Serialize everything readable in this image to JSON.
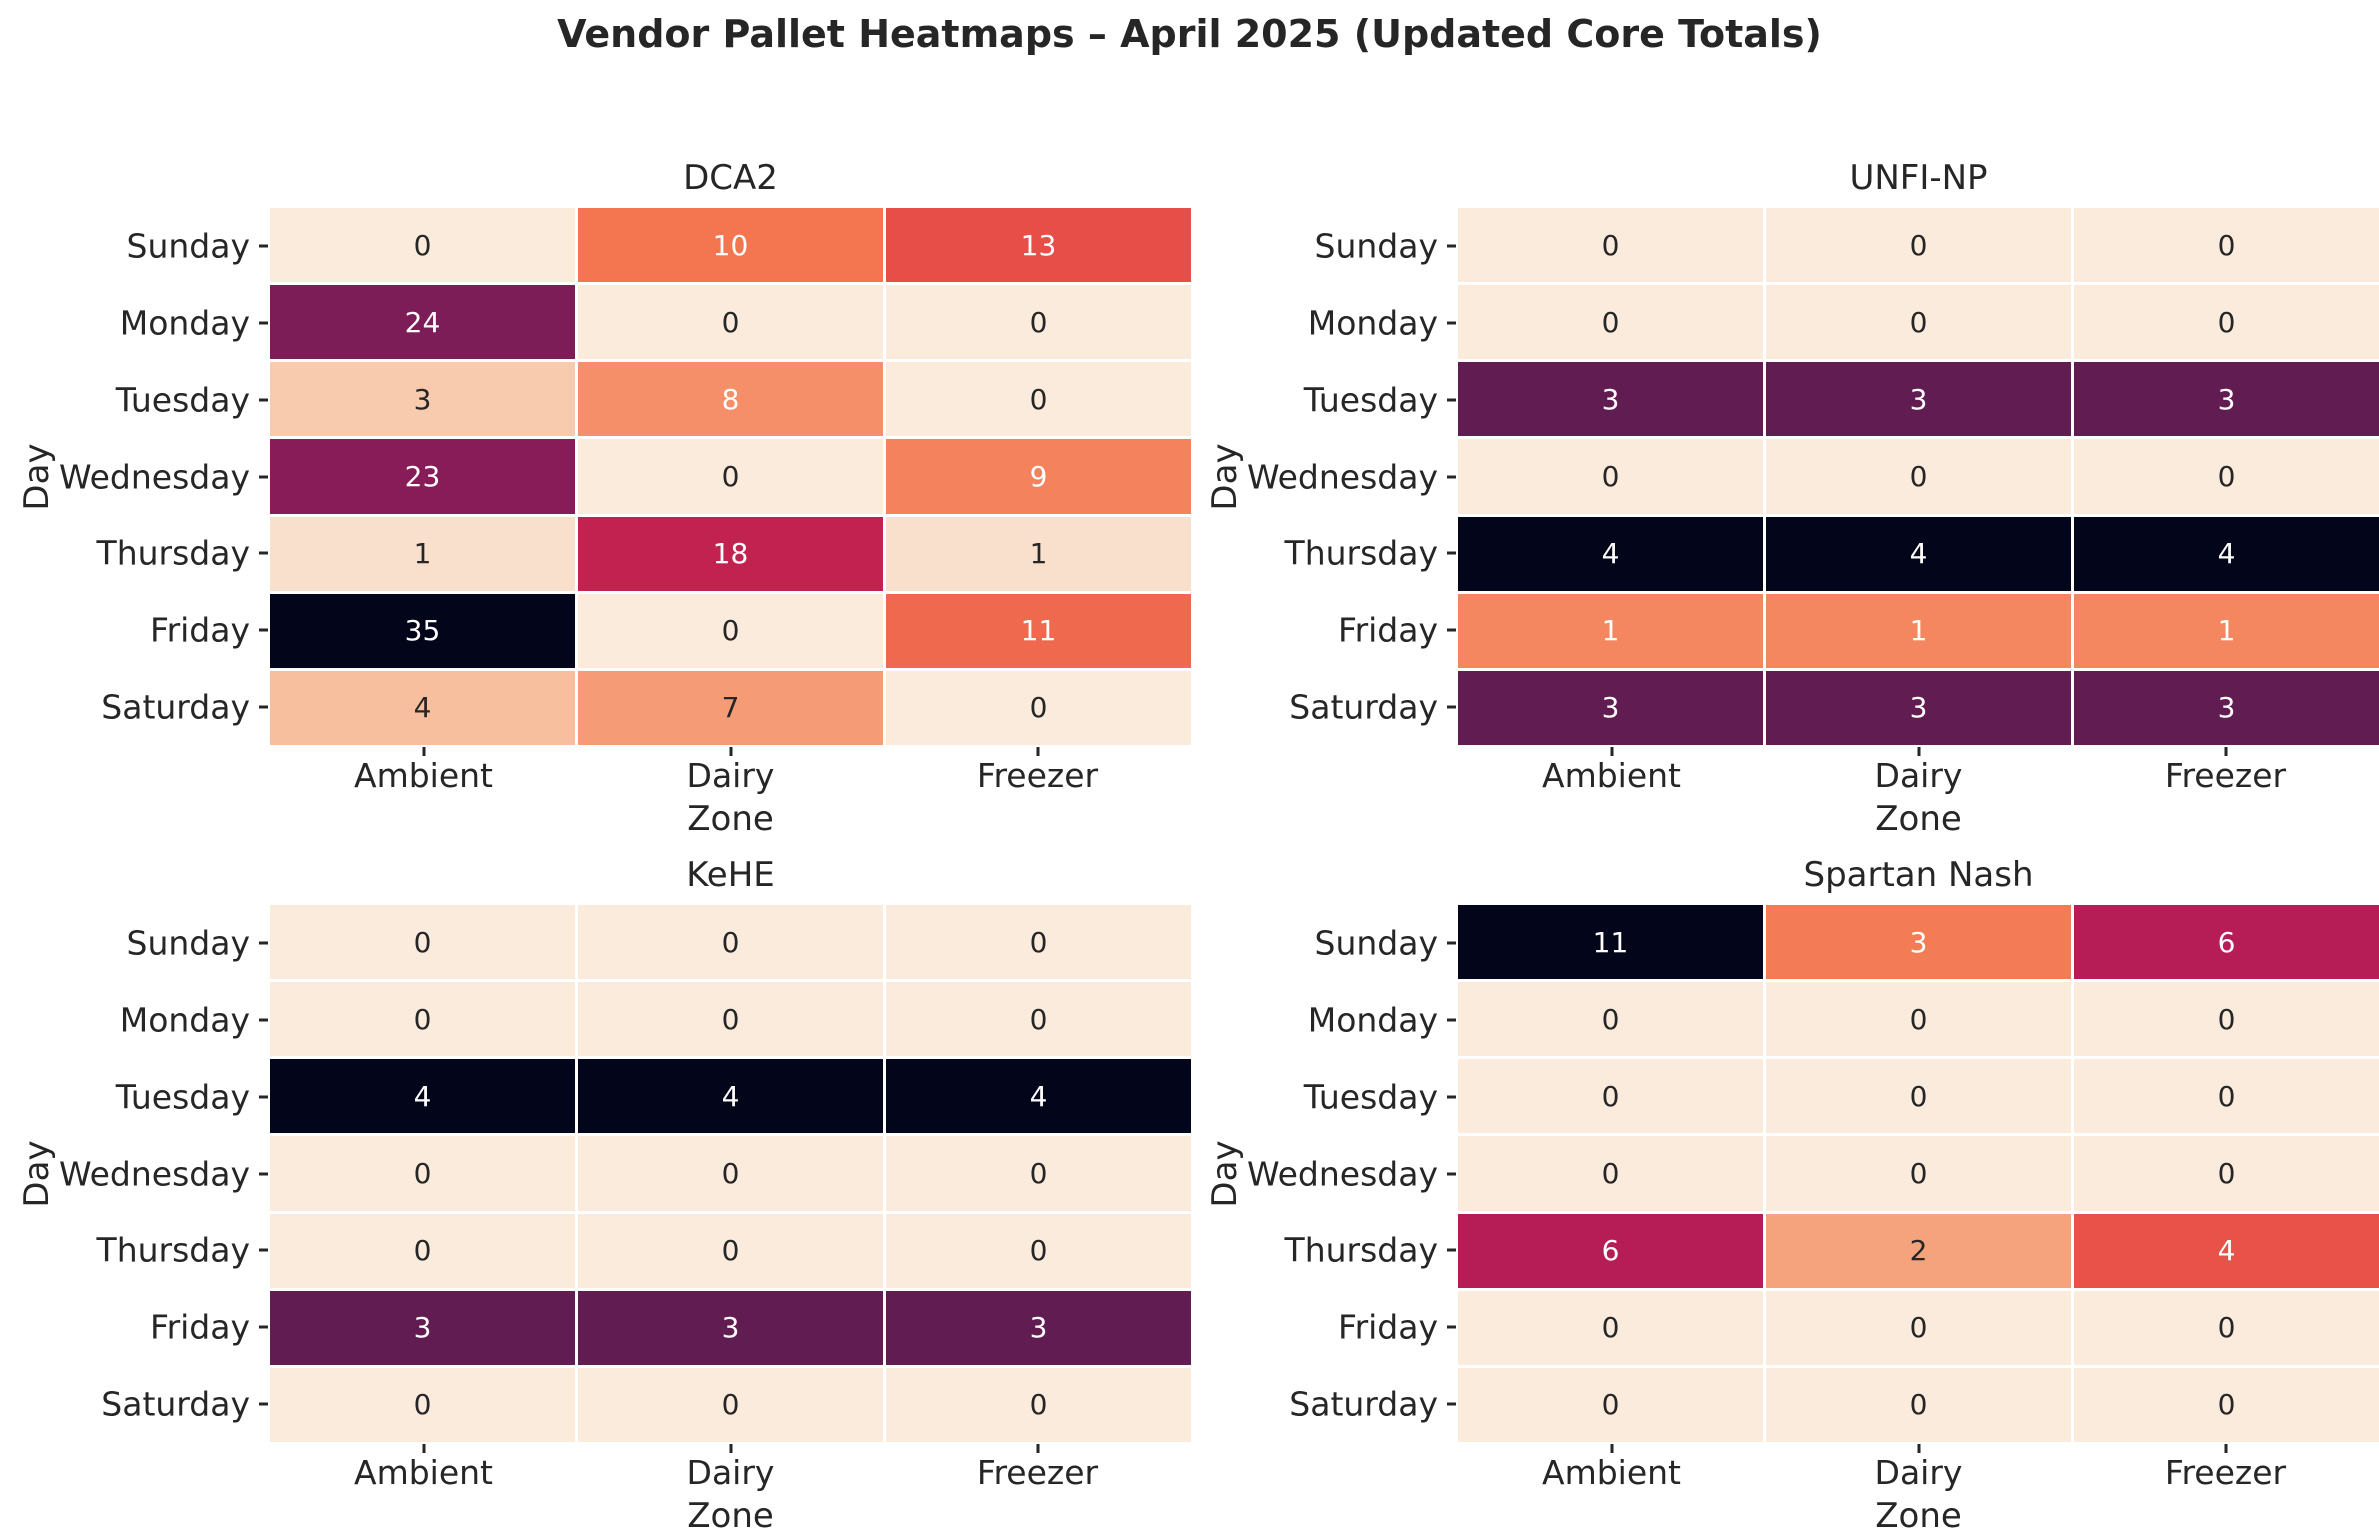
{
  "title": "Vendor Pallet Heatmaps – April 2025 (Updated Core Totals)",
  "colors": {
    "background": "#ffffff",
    "text": "#262626",
    "annotation_dark": "#262626",
    "annotation_light": "#ffffff",
    "tick_mark": "#262626"
  },
  "chart_data": {
    "type": "heatmap",
    "layout": "2x2 grid of subplots",
    "colormap": "rocket_r",
    "normalization": "each subplot scaled independently from 0 to its own max",
    "colormap_anchors": [
      [
        0.0,
        "#03051A"
      ],
      [
        0.143,
        "#35193E"
      ],
      [
        0.286,
        "#701F57"
      ],
      [
        0.429,
        "#AD1759"
      ],
      [
        0.571,
        "#E13342"
      ],
      [
        0.714,
        "#F37651"
      ],
      [
        0.857,
        "#F6B48E"
      ],
      [
        1.0,
        "#FAEBDD"
      ]
    ],
    "xlabel": "Zone",
    "ylabel": "Day",
    "columns": [
      "Ambient",
      "Dairy",
      "Freezer"
    ],
    "rows": [
      "Sunday",
      "Monday",
      "Tuesday",
      "Wednesday",
      "Thursday",
      "Friday",
      "Saturday"
    ],
    "annotation_text_colors": {
      "dark": "#262626",
      "light": "#ffffff"
    },
    "subplots": [
      {
        "title": "DCA2",
        "vmax": 35,
        "values": [
          [
            0,
            10,
            13
          ],
          [
            24,
            0,
            0
          ],
          [
            3,
            8,
            0
          ],
          [
            23,
            0,
            9
          ],
          [
            1,
            18,
            1
          ],
          [
            35,
            0,
            11
          ],
          [
            4,
            7,
            0
          ]
        ]
      },
      {
        "title": "UNFI-NP",
        "vmax": 4,
        "values": [
          [
            0,
            0,
            0
          ],
          [
            0,
            0,
            0
          ],
          [
            3,
            3,
            3
          ],
          [
            0,
            0,
            0
          ],
          [
            4,
            4,
            4
          ],
          [
            1,
            1,
            1
          ],
          [
            3,
            3,
            3
          ]
        ]
      },
      {
        "title": "KeHE",
        "vmax": 4,
        "values": [
          [
            0,
            0,
            0
          ],
          [
            0,
            0,
            0
          ],
          [
            4,
            4,
            4
          ],
          [
            0,
            0,
            0
          ],
          [
            0,
            0,
            0
          ],
          [
            3,
            3,
            3
          ],
          [
            0,
            0,
            0
          ]
        ]
      },
      {
        "title": "Spartan Nash",
        "vmax": 11,
        "values": [
          [
            11,
            3,
            6
          ],
          [
            0,
            0,
            0
          ],
          [
            0,
            0,
            0
          ],
          [
            0,
            0,
            0
          ],
          [
            6,
            2,
            4
          ],
          [
            0,
            0,
            0
          ],
          [
            0,
            0,
            0
          ]
        ]
      }
    ]
  }
}
